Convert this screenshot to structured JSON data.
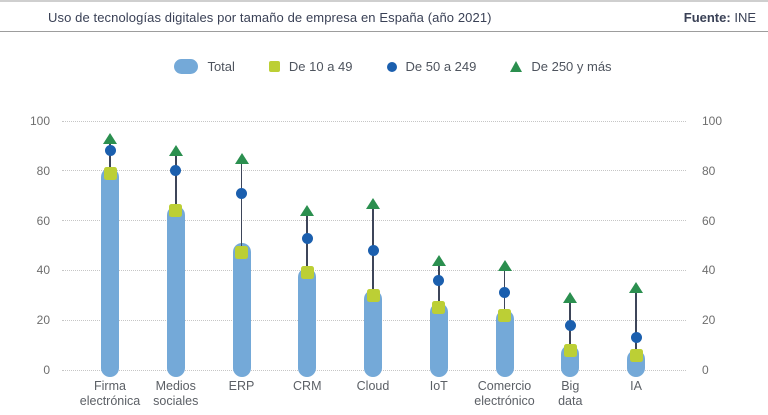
{
  "header": {
    "title": "Uso de tecnologías digitales por tamaño de empresa en España (año 2021)",
    "source_label": "Fuente:",
    "source_value": "INE"
  },
  "legend": {
    "items": [
      {
        "label": "Total",
        "marker": "pill"
      },
      {
        "label": "De 10 a 49",
        "marker": "square"
      },
      {
        "label": "De 50 a 249",
        "marker": "circle"
      },
      {
        "label": "De 250 y más",
        "marker": "triangle"
      }
    ]
  },
  "colors": {
    "total_bar": "#74a9d8",
    "size_10_49": "#bccf35",
    "size_50_249": "#1b5fae",
    "size_250_plus": "#2b8f4f",
    "stem": "#3d4559",
    "grid": "#c6c6c6"
  },
  "chart_data": {
    "type": "bar",
    "title": "Uso de tecnologías digitales por tamaño de empresa en España (año 2021)",
    "source": "Fuente: INE",
    "categories": [
      "Firma electrónica",
      "Medios sociales",
      "ERP",
      "CRM",
      "Cloud",
      "IoT",
      "Comercio electrónico",
      "Big data",
      "IA"
    ],
    "category_label_lines": [
      [
        "Firma",
        "electrónica"
      ],
      [
        "Medios",
        "sociales"
      ],
      [
        "ERP"
      ],
      [
        "CRM"
      ],
      [
        "Cloud"
      ],
      [
        "IoT"
      ],
      [
        "Comercio",
        "electrónico"
      ],
      [
        "Big",
        "data"
      ],
      [
        "IA"
      ]
    ],
    "series": [
      {
        "name": "Total",
        "marker": "bar",
        "color": "#74a9d8",
        "values": [
          81,
          66,
          51,
          41,
          32,
          27,
          24,
          10,
          8
        ]
      },
      {
        "name": "De 10 a 49",
        "marker": "square",
        "color": "#bccf35",
        "values": [
          79,
          64,
          47,
          39,
          30,
          25,
          22,
          8,
          6
        ]
      },
      {
        "name": "De 50 a 249",
        "marker": "circle",
        "color": "#1b5fae",
        "values": [
          88,
          80,
          71,
          53,
          48,
          36,
          31,
          18,
          13
        ]
      },
      {
        "name": "De 250 y más",
        "marker": "triangle",
        "color": "#2b8f4f",
        "values": [
          93,
          88,
          85,
          64,
          67,
          44,
          42,
          29,
          33
        ]
      }
    ],
    "xlabel": "",
    "ylabel": "",
    "ylim": [
      0,
      100
    ],
    "yticks": [
      0,
      20,
      40,
      60,
      80,
      100
    ],
    "y_axis_sides": "both",
    "grid": "horizontal-dotted",
    "legend_position": "top"
  }
}
